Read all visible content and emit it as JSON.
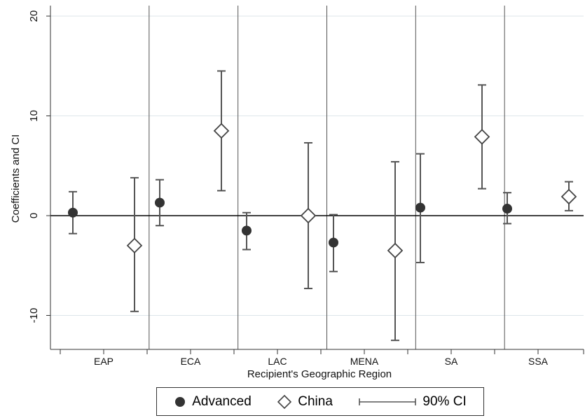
{
  "chart_data": {
    "type": "scatter",
    "ylabel": "Coefficients and CI",
    "xlabel": "Recipient's Geographic Region",
    "ylim": [
      -13.5,
      20.5
    ],
    "yticks": [
      20,
      10,
      0,
      -10
    ],
    "ytick_labels": [
      "20",
      "10",
      "0",
      "-10"
    ],
    "grid": true,
    "legend_position": "bottom",
    "categories": [
      "EAP",
      "ECA",
      "LAC",
      "MENA",
      "SA",
      "SSA"
    ],
    "series": [
      {
        "name": "Advanced",
        "marker": "filled-circle",
        "values": [
          0.3,
          1.3,
          -1.5,
          -2.7,
          0.8,
          0.7
        ],
        "ci_low": [
          -1.8,
          -1.0,
          -3.4,
          -5.6,
          -4.7,
          -0.8
        ],
        "ci_high": [
          2.4,
          3.6,
          0.3,
          0.1,
          6.2,
          2.3
        ]
      },
      {
        "name": "China",
        "marker": "hollow-diamond",
        "values": [
          -3.0,
          8.5,
          0.0,
          -3.5,
          7.9,
          1.9
        ],
        "ci_low": [
          -9.6,
          2.5,
          -7.3,
          -12.5,
          2.7,
          0.5
        ],
        "ci_high": [
          3.8,
          14.5,
          7.3,
          5.4,
          13.1,
          3.4
        ]
      }
    ],
    "legend": {
      "advanced": "Advanced",
      "china": "China",
      "ci": "90% CI"
    },
    "colors": {
      "marker": "#333333",
      "ci": "#555555",
      "grid": "#dde5ea",
      "zero_line": "#000000",
      "separator": "#555555"
    }
  }
}
